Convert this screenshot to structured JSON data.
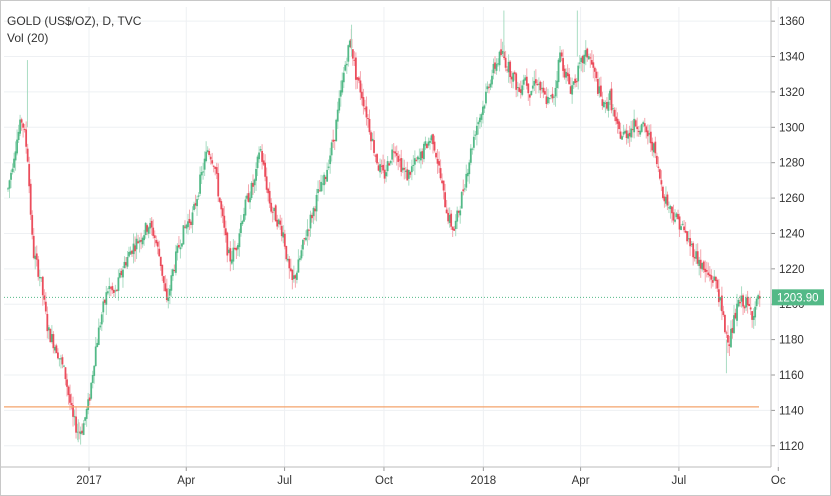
{
  "legend": {
    "title": "GOLD (US$/OZ), D, TVC",
    "indicator": "Vol (20)"
  },
  "chart_data": {
    "type": "candlestick",
    "symbol": "GOLD (US$/OZ)",
    "interval": "D",
    "source": "TVC",
    "ylim": [
      1108,
      1368
    ],
    "y_ticks": [
      1120,
      1140,
      1160,
      1180,
      1200,
      1220,
      1240,
      1260,
      1280,
      1300,
      1320,
      1340,
      1360
    ],
    "x_ticks": [
      {
        "label": "2017",
        "day": 0
      },
      {
        "label": "Apr",
        "day": 90
      },
      {
        "label": "Jul",
        "day": 181
      },
      {
        "label": "Oct",
        "day": 273
      },
      {
        "label": "2018",
        "day": 365
      },
      {
        "label": "Apr",
        "day": 455
      },
      {
        "label": "Jul",
        "day": 546
      },
      {
        "label": "Oc",
        "day": 638
      }
    ],
    "x_range_days": [
      -75,
      622
    ],
    "last_price": 1203.9,
    "last_price_label": "1203.90",
    "horizontal_line": 1142,
    "price_path": [
      [
        -75,
        1265
      ],
      [
        -68,
        1290
      ],
      [
        -62,
        1305
      ],
      [
        -57,
        1285
      ],
      [
        -52,
        1230
      ],
      [
        -45,
        1215
      ],
      [
        -38,
        1185
      ],
      [
        -30,
        1175
      ],
      [
        -22,
        1160
      ],
      [
        -15,
        1135
      ],
      [
        -10,
        1128
      ],
      [
        -6,
        1130
      ],
      [
        0,
        1145
      ],
      [
        6,
        1175
      ],
      [
        12,
        1195
      ],
      [
        18,
        1210
      ],
      [
        24,
        1205
      ],
      [
        32,
        1222
      ],
      [
        40,
        1232
      ],
      [
        48,
        1238
      ],
      [
        55,
        1245
      ],
      [
        60,
        1240
      ],
      [
        66,
        1225
      ],
      [
        72,
        1200
      ],
      [
        78,
        1220
      ],
      [
        84,
        1235
      ],
      [
        90,
        1245
      ],
      [
        96,
        1250
      ],
      [
        103,
        1270
      ],
      [
        110,
        1288
      ],
      [
        116,
        1280
      ],
      [
        120,
        1262
      ],
      [
        126,
        1238
      ],
      [
        130,
        1225
      ],
      [
        136,
        1232
      ],
      [
        142,
        1250
      ],
      [
        148,
        1262
      ],
      [
        154,
        1270
      ],
      [
        158,
        1290
      ],
      [
        163,
        1272
      ],
      [
        168,
        1255
      ],
      [
        174,
        1248
      ],
      [
        180,
        1240
      ],
      [
        184,
        1222
      ],
      [
        188,
        1212
      ],
      [
        193,
        1220
      ],
      [
        200,
        1238
      ],
      [
        206,
        1250
      ],
      [
        212,
        1262
      ],
      [
        218,
        1270
      ],
      [
        222,
        1282
      ],
      [
        227,
        1295
      ],
      [
        232,
        1315
      ],
      [
        237,
        1335
      ],
      [
        242,
        1350
      ],
      [
        247,
        1330
      ],
      [
        252,
        1320
      ],
      [
        258,
        1305
      ],
      [
        263,
        1290
      ],
      [
        268,
        1278
      ],
      [
        273,
        1272
      ],
      [
        278,
        1282
      ],
      [
        283,
        1290
      ],
      [
        288,
        1280
      ],
      [
        294,
        1272
      ],
      [
        300,
        1278
      ],
      [
        306,
        1282
      ],
      [
        312,
        1290
      ],
      [
        318,
        1295
      ],
      [
        323,
        1280
      ],
      [
        328,
        1262
      ],
      [
        333,
        1248
      ],
      [
        338,
        1242
      ],
      [
        343,
        1255
      ],
      [
        348,
        1270
      ],
      [
        353,
        1285
      ],
      [
        358,
        1300
      ],
      [
        364,
        1310
      ],
      [
        370,
        1325
      ],
      [
        376,
        1335
      ],
      [
        382,
        1342
      ],
      [
        387,
        1335
      ],
      [
        392,
        1330
      ],
      [
        398,
        1320
      ],
      [
        403,
        1330
      ],
      [
        408,
        1320
      ],
      [
        414,
        1328
      ],
      [
        420,
        1318
      ],
      [
        426,
        1314
      ],
      [
        431,
        1320
      ],
      [
        436,
        1342
      ],
      [
        441,
        1330
      ],
      [
        446,
        1322
      ],
      [
        452,
        1330
      ],
      [
        457,
        1338
      ],
      [
        462,
        1342
      ],
      [
        467,
        1332
      ],
      [
        472,
        1320
      ],
      [
        477,
        1310
      ],
      [
        482,
        1318
      ],
      [
        488,
        1300
      ],
      [
        493,
        1295
      ],
      [
        500,
        1298
      ],
      [
        506,
        1302
      ],
      [
        512,
        1300
      ],
      [
        517,
        1296
      ],
      [
        522,
        1290
      ],
      [
        527,
        1275
      ],
      [
        532,
        1262
      ],
      [
        537,
        1255
      ],
      [
        542,
        1250
      ],
      [
        548,
        1245
      ],
      [
        553,
        1238
      ],
      [
        558,
        1232
      ],
      [
        564,
        1225
      ],
      [
        570,
        1218
      ],
      [
        576,
        1215
      ],
      [
        581,
        1212
      ],
      [
        585,
        1198
      ],
      [
        589,
        1185
      ],
      [
        593,
        1180
      ],
      [
        597,
        1190
      ],
      [
        601,
        1200
      ],
      [
        606,
        1202
      ],
      [
        610,
        1198
      ],
      [
        614,
        1195
      ],
      [
        618,
        1200
      ],
      [
        621,
        1204
      ]
    ]
  }
}
